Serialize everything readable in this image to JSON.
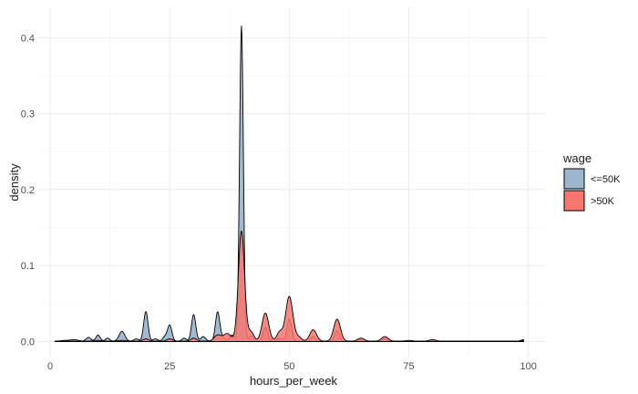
{
  "chart_data": {
    "type": "area",
    "title": "",
    "xlabel": "hours_per_week",
    "ylabel": "density",
    "xlim": [
      -2.5,
      103.5
    ],
    "ylim": [
      -0.021,
      0.44
    ],
    "x_ticks": [
      0,
      25,
      50,
      75,
      100
    ],
    "y_ticks": [
      0.0,
      0.1,
      0.2,
      0.3,
      0.4
    ],
    "y_tick_labels": [
      "0.0",
      "0.1",
      "0.2",
      "0.3",
      "0.4"
    ],
    "grid": true,
    "legend": {
      "title": "wage",
      "position": "right"
    },
    "series": [
      {
        "name": "<=50K",
        "color": "#9DB6CF",
        "baseline": 0.0005,
        "range": [
          1,
          99
        ],
        "peaks": [
          [
            3,
            0.001,
            0.8
          ],
          [
            5,
            0.002,
            0.8
          ],
          [
            8,
            0.005,
            0.5
          ],
          [
            10,
            0.008,
            0.45
          ],
          [
            12,
            0.004,
            0.45
          ],
          [
            15,
            0.013,
            0.6
          ],
          [
            18,
            0.003,
            0.5
          ],
          [
            20,
            0.039,
            0.45
          ],
          [
            22,
            0.003,
            0.5
          ],
          [
            24,
            0.006,
            0.45
          ],
          [
            25,
            0.021,
            0.45
          ],
          [
            28,
            0.004,
            0.45
          ],
          [
            30,
            0.035,
            0.45
          ],
          [
            32,
            0.006,
            0.5
          ],
          [
            35,
            0.038,
            0.45
          ],
          [
            36,
            0.005,
            0.5
          ],
          [
            38,
            0.008,
            0.5
          ],
          [
            40,
            0.415,
            0.4
          ],
          [
            42,
            0.007,
            0.5
          ],
          [
            45,
            0.018,
            0.5
          ],
          [
            48,
            0.004,
            0.5
          ],
          [
            50,
            0.029,
            0.5
          ],
          [
            55,
            0.006,
            0.5
          ],
          [
            60,
            0.014,
            0.5
          ],
          [
            65,
            0.002,
            0.5
          ],
          [
            70,
            0.003,
            0.5
          ],
          [
            80,
            0.001,
            0.5
          ],
          [
            99,
            0.002,
            0.5
          ]
        ]
      },
      {
        "name": ">50K",
        "color": "#F8766D",
        "baseline": 0.0005,
        "range": [
          1,
          99
        ],
        "peaks": [
          [
            10,
            0.001,
            0.8
          ],
          [
            15,
            0.001,
            0.8
          ],
          [
            20,
            0.003,
            0.6
          ],
          [
            25,
            0.003,
            0.6
          ],
          [
            30,
            0.004,
            0.6
          ],
          [
            35,
            0.008,
            0.7
          ],
          [
            37,
            0.01,
            0.8
          ],
          [
            40,
            0.145,
            0.65
          ],
          [
            42,
            0.012,
            0.6
          ],
          [
            45,
            0.037,
            0.7
          ],
          [
            48,
            0.012,
            0.6
          ],
          [
            50,
            0.059,
            0.75
          ],
          [
            52,
            0.005,
            0.6
          ],
          [
            55,
            0.015,
            0.7
          ],
          [
            60,
            0.029,
            0.7
          ],
          [
            65,
            0.004,
            0.7
          ],
          [
            70,
            0.006,
            0.7
          ],
          [
            75,
            0.001,
            0.7
          ],
          [
            80,
            0.002,
            0.7
          ],
          [
            99,
            0.001,
            0.6
          ]
        ]
      }
    ]
  }
}
